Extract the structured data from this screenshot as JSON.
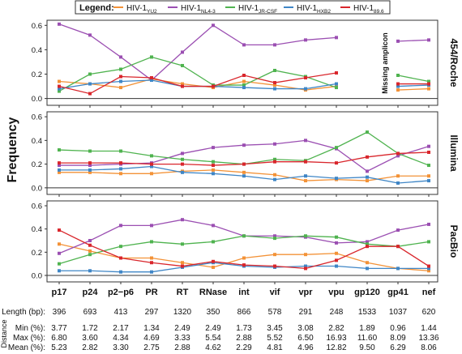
{
  "legend": {
    "title": "Legend:",
    "items": [
      {
        "base": "HIV-1",
        "sub": "YU2",
        "color": "#f39237"
      },
      {
        "base": "HIV-1",
        "sub": "NL4-3",
        "color": "#9b4fb2"
      },
      {
        "base": "HIV-1",
        "sub": "JR-CSF",
        "color": "#4fb34f"
      },
      {
        "base": "HIV-1",
        "sub": "HXB2",
        "color": "#3f86c6"
      },
      {
        "base": "HIV-1",
        "sub": "89.6",
        "color": "#d9262c"
      }
    ]
  },
  "y_axis_title": "Frequency",
  "annotation": "Missing amplicon",
  "distance_label": "Distance",
  "chart_data": [
    {
      "type": "line",
      "panel": "454/Roche",
      "ylim": [
        0,
        0.6
      ],
      "yticks": [
        "0.0",
        "0.2",
        "0.4",
        "0.6"
      ],
      "categories": [
        "p17",
        "p24",
        "p2−p6",
        "PR",
        "RT",
        "RNase",
        "int",
        "vif",
        "vpr",
        "vpu",
        "gp120",
        "gp41",
        "nef"
      ],
      "series": [
        {
          "name": "HIV-1YU2",
          "values": [
            0.14,
            0.12,
            0.09,
            0.16,
            0.12,
            0.09,
            0.14,
            0.11,
            0.07,
            0.1,
            null,
            0.07,
            0.08
          ]
        },
        {
          "name": "HIV-1NL4-3",
          "values": [
            0.61,
            0.52,
            0.34,
            0.15,
            0.38,
            0.6,
            0.44,
            0.44,
            0.48,
            0.5,
            null,
            0.47,
            0.48
          ]
        },
        {
          "name": "HIV-1JR-CSF",
          "values": [
            0.06,
            0.2,
            0.24,
            0.34,
            0.27,
            0.11,
            0.11,
            0.23,
            0.18,
            0.09,
            null,
            0.19,
            0.14
          ]
        },
        {
          "name": "HIV-1HXB2",
          "values": [
            0.08,
            0.12,
            0.14,
            0.15,
            0.1,
            0.1,
            0.09,
            0.08,
            0.08,
            0.12,
            null,
            0.1,
            0.11
          ]
        },
        {
          "name": "HIV-1_89.6",
          "values": [
            0.1,
            0.04,
            0.18,
            0.17,
            0.1,
            0.1,
            0.19,
            0.13,
            0.17,
            0.21,
            null,
            0.12,
            0.12
          ]
        }
      ]
    },
    {
      "type": "line",
      "panel": "Illumina",
      "ylim": [
        0,
        0.6
      ],
      "yticks": [
        "0.0",
        "0.2",
        "0.4",
        "0.6"
      ],
      "categories": [
        "p17",
        "p24",
        "p2−p6",
        "PR",
        "RT",
        "RNase",
        "int",
        "vif",
        "vpr",
        "vpu",
        "gp120",
        "gp41",
        "nef"
      ],
      "series": [
        {
          "name": "HIV-1YU2",
          "values": [
            0.13,
            0.13,
            0.12,
            0.12,
            0.14,
            0.15,
            0.13,
            0.11,
            0.06,
            0.07,
            0.06,
            0.1,
            0.1
          ]
        },
        {
          "name": "HIV-1NL4-3",
          "values": [
            0.19,
            0.19,
            0.2,
            0.21,
            0.29,
            0.34,
            0.36,
            0.37,
            0.4,
            0.33,
            0.14,
            0.27,
            0.35
          ]
        },
        {
          "name": "HIV-1JR-CSF",
          "values": [
            0.32,
            0.31,
            0.31,
            0.27,
            0.24,
            0.22,
            0.2,
            0.24,
            0.23,
            0.34,
            0.47,
            0.29,
            0.19
          ]
        },
        {
          "name": "HIV-1HXB2",
          "values": [
            0.15,
            0.15,
            0.16,
            0.18,
            0.13,
            0.12,
            0.1,
            0.07,
            0.1,
            0.08,
            0.09,
            0.04,
            0.06
          ]
        },
        {
          "name": "HIV-1_89.6",
          "values": [
            0.21,
            0.21,
            0.21,
            0.2,
            0.2,
            0.19,
            0.2,
            0.22,
            0.22,
            0.21,
            0.26,
            0.29,
            0.3
          ]
        }
      ]
    },
    {
      "type": "line",
      "panel": "PacBio",
      "ylim": [
        0,
        0.6
      ],
      "yticks": [
        "0.0",
        "0.2",
        "0.4",
        "0.6"
      ],
      "categories": [
        "p17",
        "p24",
        "p2−p6",
        "PR",
        "RT",
        "RNase",
        "int",
        "vif",
        "vpr",
        "vpu",
        "gp120",
        "gp41",
        "nef"
      ],
      "series": [
        {
          "name": "HIV-1YU2",
          "values": [
            0.27,
            0.21,
            0.15,
            0.15,
            0.11,
            0.07,
            0.15,
            0.18,
            0.18,
            0.19,
            0.11,
            0.06,
            0.04
          ]
        },
        {
          "name": "HIV-1NL4-3",
          "values": [
            0.19,
            0.3,
            0.43,
            0.43,
            0.48,
            0.43,
            0.34,
            0.34,
            0.33,
            0.28,
            0.29,
            0.39,
            0.44
          ]
        },
        {
          "name": "HIV-1JR-CSF",
          "values": [
            0.1,
            0.18,
            0.25,
            0.29,
            0.27,
            0.29,
            0.34,
            0.32,
            0.34,
            0.33,
            0.27,
            0.25,
            0.29
          ]
        },
        {
          "name": "HIV-1HXB2",
          "values": [
            0.04,
            0.04,
            0.03,
            0.03,
            0.07,
            0.11,
            0.08,
            0.07,
            0.08,
            0.08,
            0.06,
            0.06,
            0.06
          ]
        },
        {
          "name": "HIV-1_89.6",
          "values": [
            0.39,
            0.26,
            0.15,
            0.11,
            0.08,
            0.12,
            0.09,
            0.08,
            0.06,
            0.13,
            0.25,
            0.25,
            0.08
          ]
        }
      ]
    }
  ],
  "stats": {
    "rows": [
      {
        "label": "Length (bp):",
        "values": [
          "396",
          "693",
          "413",
          "297",
          "1320",
          "350",
          "866",
          "578",
          "291",
          "248",
          "1533",
          "1037",
          "620"
        ]
      },
      {
        "label": "Min (%):",
        "values": [
          "3.77",
          "1.72",
          "2.17",
          "1.34",
          "2.49",
          "2.49",
          "1.73",
          "3.45",
          "3.08",
          "2.82",
          "1.89",
          "0.96",
          "1.44"
        ]
      },
      {
        "label": "Max (%):",
        "values": [
          "6.80",
          "3.60",
          "4.34",
          "4.69",
          "3.33",
          "5.54",
          "2.88",
          "5.52",
          "6.50",
          "16.93",
          "11.60",
          "8.09",
          "13.36"
        ]
      },
      {
        "label": "Mean (%):",
        "values": [
          "5.23",
          "2.82",
          "3.30",
          "2.75",
          "2.88",
          "4.62",
          "2.29",
          "4.81",
          "4.96",
          "12.82",
          "9.50",
          "6.29",
          "8.06"
        ]
      }
    ]
  }
}
